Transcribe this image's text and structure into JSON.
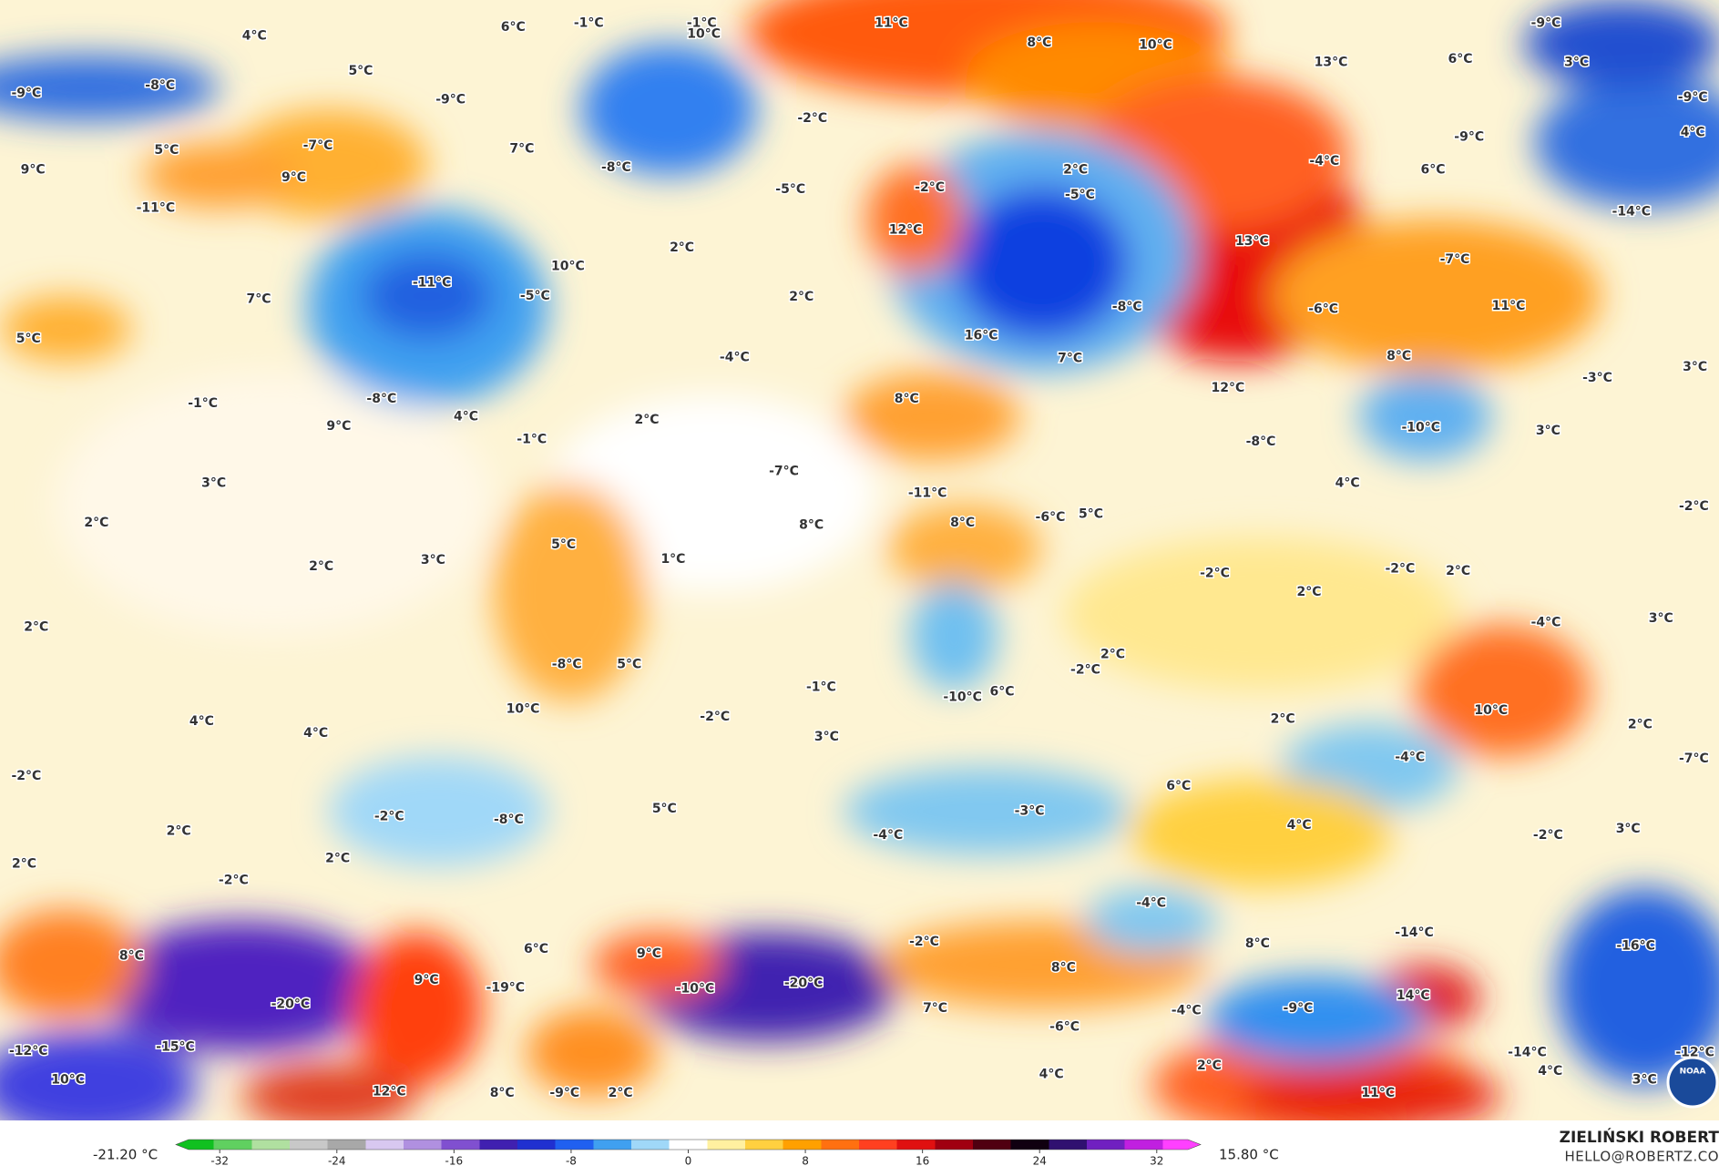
{
  "map": {
    "labels": [
      "4°C",
      "6°C",
      "-1°C",
      "-1°C",
      "10°C",
      "11°C",
      "8°C",
      "10°C",
      "-9°C",
      "13°C",
      "6°C",
      "3°C",
      "-9°C",
      "-8°C",
      "5°C",
      "-9°C",
      "-9°C",
      "-2°C",
      "5°C",
      "-7°C",
      "7°C",
      "-8°C",
      "-9°C",
      "-4°C",
      "6°C",
      "4°C",
      "9°C",
      "9°C",
      "-5°C",
      "2°C",
      "-2°C",
      "-5°C",
      "-11°C",
      "12°C",
      "-14°C",
      "13°C",
      "2°C",
      "10°C",
      "-7°C",
      "-11°C",
      "-5°C",
      "2°C",
      "7°C",
      "-8°C",
      "-6°C",
      "11°C",
      "5°C",
      "-4°C",
      "16°C",
      "7°C",
      "8°C",
      "3°C",
      "-3°C",
      "12°C",
      "-8°C",
      "-1°C",
      "8°C",
      "9°C",
      "4°C",
      "2°C",
      "-10°C",
      "3°C",
      "-1°C",
      "-8°C",
      "3°C",
      "-7°C",
      "4°C",
      "-11°C",
      "-2°C",
      "-6°C",
      "5°C",
      "2°C",
      "8°C",
      "8°C",
      "5°C",
      "1°C",
      "2°C",
      "3°C",
      "-2°C",
      "-2°C",
      "2°C",
      "2°C",
      "3°C",
      "2°C",
      "-4°C",
      "2°C",
      "-2°C",
      "-8°C",
      "5°C",
      "-1°C",
      "-10°C",
      "6°C",
      "10°C",
      "-2°C",
      "10°C",
      "4°C",
      "4°C",
      "2°C",
      "2°C",
      "3°C",
      "-4°C",
      "-7°C",
      "-2°C",
      "6°C",
      "5°C",
      "-3°C",
      "-2°C",
      "-8°C",
      "4°C",
      "3°C",
      "-2°C",
      "2°C",
      "-4°C",
      "2°C",
      "2°C",
      "-2°C",
      "-4°C",
      "-14°C",
      "8°C",
      "-16°C",
      "-2°C",
      "6°C",
      "9°C",
      "8°C",
      "8°C",
      "9°C",
      "-19°C",
      "-10°C",
      "-20°C",
      "14°C",
      "-20°C",
      "7°C",
      "-4°C",
      "-9°C",
      "-6°C",
      "-15°C",
      "-12°C",
      "-14°C",
      "-12°C",
      "2°C",
      "4°C",
      "4°C",
      "10°C",
      "12°C",
      "8°C",
      "-9°C",
      "2°C",
      "11°C",
      "3°C"
    ],
    "logo": "NOAA"
  },
  "colorbar": {
    "min_label": "-21.20 °C",
    "max_label": "15.80 °C",
    "range": [
      -35,
      35
    ],
    "ticks": [
      -32,
      -24,
      -16,
      -8,
      0,
      8,
      16,
      24,
      32
    ],
    "colors": [
      "#10c020",
      "#60d060",
      "#b0e0a0",
      "#c8c8c8",
      "#a8a8a8",
      "#d8c8f0",
      "#b090e0",
      "#8050d0",
      "#4020b0",
      "#2030d0",
      "#2060f0",
      "#40a0f0",
      "#a0d8f8",
      "#ffffff",
      "#fff0a0",
      "#ffd040",
      "#ffa000",
      "#ff7010",
      "#ff4020",
      "#e01010",
      "#a00010",
      "#500010",
      "#100010",
      "#301070",
      "#7020c0",
      "#c020e0",
      "#ff40ff"
    ]
  },
  "credit": {
    "name": "ZIELIŃSKI ROBERT",
    "contact": "HELLO@ROBERTZ.CO"
  }
}
